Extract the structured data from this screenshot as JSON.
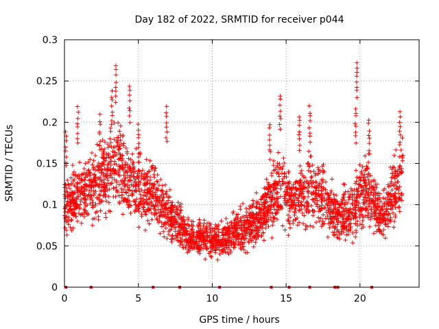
{
  "chart_data": {
    "type": "scatter",
    "title": "Day 182 of 2022, SRMTID for receiver p044",
    "xlabel": "GPS time / hours",
    "ylabel": "SRMTID / TECUs",
    "xlim": [
      0,
      24
    ],
    "ylim": [
      0,
      0.3
    ],
    "xticks": [
      0,
      5,
      10,
      15,
      20
    ],
    "yticks": [
      0,
      0.05,
      0.1,
      0.15,
      0.2,
      0.25,
      0.3
    ],
    "xtick_labels": [
      "0",
      "5",
      "10",
      "15",
      "20"
    ],
    "ytick_labels": [
      "0",
      "0.05",
      "0.1",
      "0.15",
      "0.2",
      "0.25",
      "0.3"
    ],
    "grid": true,
    "marker": "+",
    "color": "#ff0000",
    "x_range_of_points": [
      0,
      22.9
    ],
    "trend": [
      {
        "x": 0.0,
        "y": 0.1
      },
      {
        "x": 1.0,
        "y": 0.11
      },
      {
        "x": 2.0,
        "y": 0.12
      },
      {
        "x": 2.8,
        "y": 0.14
      },
      {
        "x": 3.5,
        "y": 0.15
      },
      {
        "x": 4.5,
        "y": 0.125
      },
      {
        "x": 5.5,
        "y": 0.115
      },
      {
        "x": 6.5,
        "y": 0.1
      },
      {
        "x": 7.5,
        "y": 0.08
      },
      {
        "x": 8.3,
        "y": 0.06
      },
      {
        "x": 9.5,
        "y": 0.06
      },
      {
        "x": 10.5,
        "y": 0.055
      },
      {
        "x": 11.5,
        "y": 0.065
      },
      {
        "x": 12.5,
        "y": 0.075
      },
      {
        "x": 13.5,
        "y": 0.09
      },
      {
        "x": 14.5,
        "y": 0.12
      },
      {
        "x": 15.5,
        "y": 0.105
      },
      {
        "x": 16.5,
        "y": 0.115
      },
      {
        "x": 17.5,
        "y": 0.11
      },
      {
        "x": 18.5,
        "y": 0.085
      },
      {
        "x": 19.5,
        "y": 0.095
      },
      {
        "x": 20.5,
        "y": 0.12
      },
      {
        "x": 21.5,
        "y": 0.085
      },
      {
        "x": 22.5,
        "y": 0.12
      },
      {
        "x": 22.9,
        "y": 0.14
      }
    ],
    "spikes": [
      {
        "x": 0.1,
        "y": 0.19
      },
      {
        "x": 0.9,
        "y": 0.22
      },
      {
        "x": 2.4,
        "y": 0.21
      },
      {
        "x": 3.2,
        "y": 0.24
      },
      {
        "x": 3.5,
        "y": 0.27
      },
      {
        "x": 4.4,
        "y": 0.245
      },
      {
        "x": 5.0,
        "y": 0.2
      },
      {
        "x": 6.9,
        "y": 0.22
      },
      {
        "x": 13.9,
        "y": 0.2
      },
      {
        "x": 14.6,
        "y": 0.235
      },
      {
        "x": 15.9,
        "y": 0.21
      },
      {
        "x": 16.6,
        "y": 0.22
      },
      {
        "x": 19.8,
        "y": 0.275
      },
      {
        "x": 19.7,
        "y": 0.22
      },
      {
        "x": 20.6,
        "y": 0.205
      },
      {
        "x": 22.7,
        "y": 0.215
      }
    ],
    "zero_points_x": [
      0.1,
      1.8,
      6.0,
      7.8,
      10.5,
      14.0,
      15.2,
      16.6,
      18.3,
      18.5,
      20.8
    ]
  }
}
